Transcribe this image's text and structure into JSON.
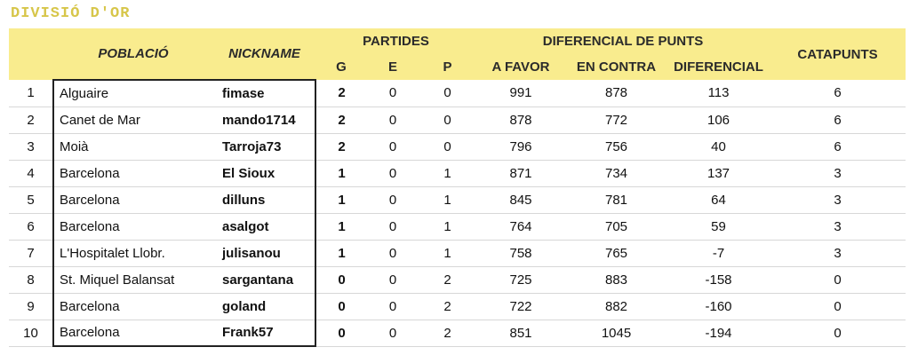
{
  "title": "DIVISIÓ D'OR",
  "header": {
    "poblacio": "POBLACIÓ",
    "nickname": "NICKNAME",
    "partides": "PARTIDES",
    "diferencial_group": "DIFERENCIAL DE PUNTS",
    "catapunts": "CATAPUNTS",
    "g": "G",
    "e": "E",
    "p": "P",
    "a_favor": "A FAVOR",
    "en_contra": "EN CONTRA",
    "diferencial": "DIFERENCIAL"
  },
  "rows": [
    {
      "rank": "1",
      "town": "Alguaire",
      "nick": "fimase",
      "g": "2",
      "e": "0",
      "p": "0",
      "favor": "991",
      "contra": "878",
      "dif": "113",
      "cat": "6"
    },
    {
      "rank": "2",
      "town": "Canet de Mar",
      "nick": "mando1714",
      "g": "2",
      "e": "0",
      "p": "0",
      "favor": "878",
      "contra": "772",
      "dif": "106",
      "cat": "6"
    },
    {
      "rank": "3",
      "town": "Moià",
      "nick": "Tarroja73",
      "g": "2",
      "e": "0",
      "p": "0",
      "favor": "796",
      "contra": "756",
      "dif": "40",
      "cat": "6"
    },
    {
      "rank": "4",
      "town": "Barcelona",
      "nick": "El Sioux",
      "g": "1",
      "e": "0",
      "p": "1",
      "favor": "871",
      "contra": "734",
      "dif": "137",
      "cat": "3"
    },
    {
      "rank": "5",
      "town": "Barcelona",
      "nick": "dilluns",
      "g": "1",
      "e": "0",
      "p": "1",
      "favor": "845",
      "contra": "781",
      "dif": "64",
      "cat": "3"
    },
    {
      "rank": "6",
      "town": "Barcelona",
      "nick": "asalgot",
      "g": "1",
      "e": "0",
      "p": "1",
      "favor": "764",
      "contra": "705",
      "dif": "59",
      "cat": "3"
    },
    {
      "rank": "7",
      "town": "L'Hospitalet Llobr.",
      "nick": "julisanou",
      "g": "1",
      "e": "0",
      "p": "1",
      "favor": "758",
      "contra": "765",
      "dif": "-7",
      "cat": "3"
    },
    {
      "rank": "8",
      "town": "St. Miquel Balansat",
      "nick": "sargantana",
      "g": "0",
      "e": "0",
      "p": "2",
      "favor": "725",
      "contra": "883",
      "dif": "-158",
      "cat": "0"
    },
    {
      "rank": "9",
      "town": "Barcelona",
      "nick": "goland",
      "g": "0",
      "e": "0",
      "p": "2",
      "favor": "722",
      "contra": "882",
      "dif": "-160",
      "cat": "0"
    },
    {
      "rank": "10",
      "town": "Barcelona",
      "nick": "Frank57",
      "g": "0",
      "e": "0",
      "p": "2",
      "favor": "851",
      "contra": "1045",
      "dif": "-194",
      "cat": "0"
    }
  ],
  "colors": {
    "title": "#d7c64a",
    "header_bg": "#f9ec8e"
  }
}
